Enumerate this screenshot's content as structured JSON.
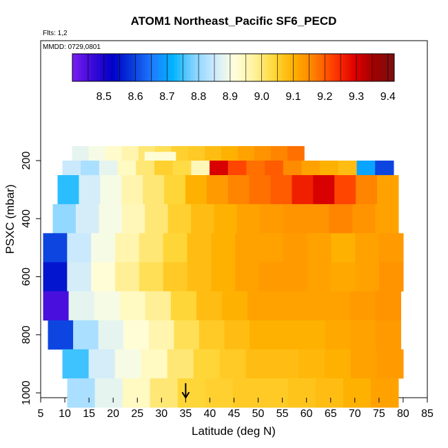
{
  "chart_data": {
    "type": "heatmap",
    "title": "ATOM1 Northeast_Pacific SF6_PECD",
    "subtitle_flights": "Flts: 1,2",
    "subtitle_dates": "MMDD: 0729,0801",
    "xlabel": "Latitude (deg N)",
    "ylabel": "PSXC (mbar)",
    "xlim": [
      5,
      85
    ],
    "ylim": [
      1020,
      150
    ],
    "x_ticks": [
      5,
      10,
      15,
      20,
      25,
      30,
      35,
      40,
      45,
      50,
      55,
      60,
      65,
      70,
      75,
      80,
      85
    ],
    "y_ticks": [
      200,
      400,
      600,
      800,
      1000
    ],
    "colorbar": {
      "range": [
        8.4,
        9.42
      ],
      "ticks": [
        8.5,
        8.6,
        8.7,
        8.8,
        8.9,
        9.0,
        9.1,
        9.2,
        9.3,
        9.4
      ],
      "tick_labels": [
        "8.5",
        "8.6",
        "8.7",
        "8.8",
        "8.9",
        "9.0",
        "9.1",
        "9.2",
        "9.3",
        "9.4"
      ],
      "colors": [
        "#7a1ff0",
        "#3a0ad8",
        "#0000c8",
        "#0a3cdc",
        "#1e7cff",
        "#00b4ff",
        "#7fd2ff",
        "#c8e8ff",
        "#ffffe0",
        "#fff2a0",
        "#ffd83a",
        "#ffb000",
        "#ff8000",
        "#ff3c00",
        "#e00000",
        "#a00000",
        "#7a1010"
      ]
    },
    "marker_latitude": 35,
    "pressure_bins": [
      {
        "p": 200,
        "lat_start": 11.5,
        "lat_end": 59.5,
        "values": [
          8.88,
          8.9,
          8.93,
          8.96,
          9.0,
          9.02,
          9.05,
          9.06,
          9.08,
          9.1,
          9.12,
          9.14,
          9.16,
          9.18
        ]
      },
      {
        "p": 250,
        "lat_start": 9.5,
        "lat_end": 78,
        "values": [
          8.85,
          8.82,
          8.88,
          8.94,
          9.0,
          9.05,
          9.03,
          8.95,
          9.3,
          9.22,
          9.18,
          9.2,
          9.15,
          9.12,
          9.1,
          9.08,
          8.7,
          8.6
        ]
      },
      {
        "p": 300,
        "lat_start": 8.5,
        "lat_end": 79,
        "values": [
          8.74,
          8.86,
          8.9,
          8.96,
          9.0,
          9.04,
          9.1,
          9.13,
          9.16,
          9.18,
          9.2,
          9.26,
          9.3,
          9.22,
          9.16,
          9.12
        ]
      },
      {
        "p": 400,
        "lat_start": 7.5,
        "lat_end": 79,
        "values": [
          8.8,
          8.86,
          8.9,
          8.95,
          9.0,
          9.05,
          9.08,
          9.1,
          9.12,
          9.13,
          9.14,
          9.14,
          9.16,
          9.14,
          9.12
        ]
      },
      {
        "p": 500,
        "lat_start": 5.5,
        "lat_end": 80,
        "values": [
          8.6,
          8.85,
          8.9,
          8.96,
          9.0,
          9.04,
          9.08,
          9.1,
          9.12,
          9.12,
          9.13,
          9.12,
          9.1,
          9.12,
          9.13
        ]
      },
      {
        "p": 600,
        "lat_start": 5.5,
        "lat_end": 80,
        "values": [
          8.55,
          8.86,
          8.92,
          8.98,
          9.02,
          9.06,
          9.08,
          9.1,
          9.12,
          9.13,
          9.13,
          9.12,
          9.11,
          9.12,
          9.14
        ]
      },
      {
        "p": 700,
        "lat_start": 5.5,
        "lat_end": 79.5,
        "values": [
          8.45,
          8.88,
          8.9,
          8.94,
          8.98,
          9.04,
          9.08,
          9.1,
          9.12,
          9.12,
          9.12,
          9.12,
          9.13,
          9.14
        ]
      },
      {
        "p": 800,
        "lat_start": 6.5,
        "lat_end": 79.5,
        "values": [
          8.6,
          8.82,
          8.88,
          8.92,
          8.96,
          9.02,
          9.06,
          9.08,
          9.1,
          9.1,
          9.1,
          9.11,
          9.12,
          9.13
        ]
      },
      {
        "p": 900,
        "lat_start": 9.5,
        "lat_end": 80,
        "values": [
          8.75,
          8.86,
          8.9,
          8.94,
          9.0,
          9.04,
          9.06,
          9.08,
          9.08,
          9.09,
          9.1,
          9.12,
          9.13
        ]
      },
      {
        "p": 1000,
        "lat_start": 10.5,
        "lat_end": 79,
        "values": [
          8.82,
          8.88,
          8.94,
          9.0,
          9.04,
          9.05,
          9.06,
          9.06,
          9.07,
          9.08,
          9.1,
          9.12
        ]
      }
    ]
  }
}
